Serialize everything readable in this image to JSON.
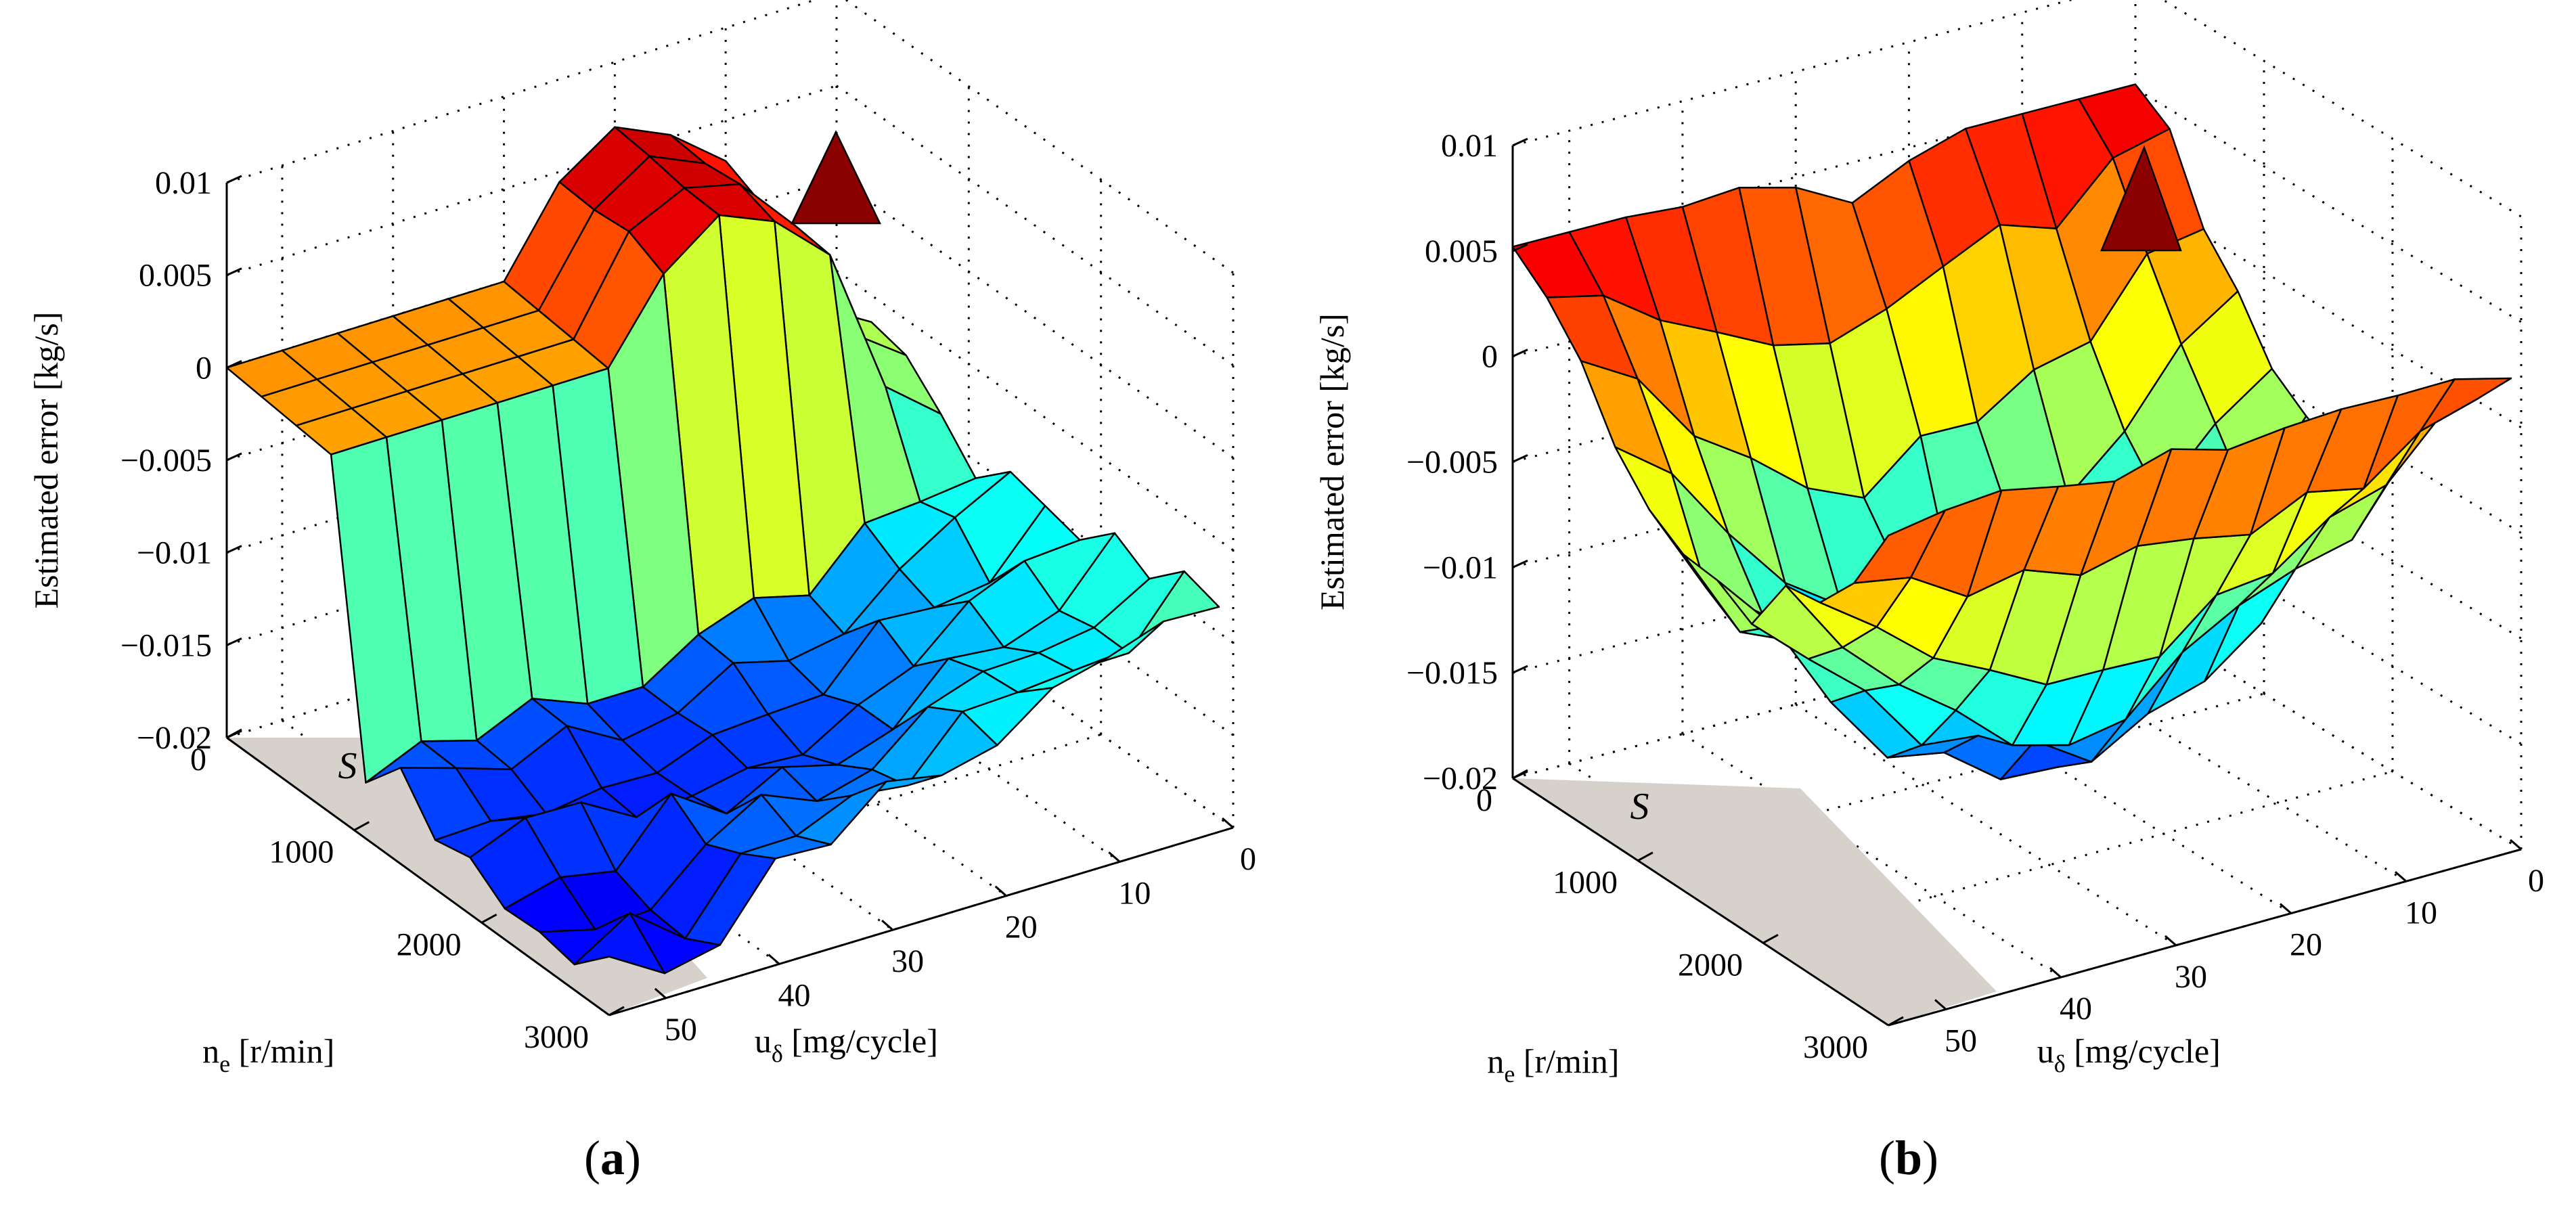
{
  "figure_labels": [
    "a",
    "b"
  ],
  "chart_data": [
    {
      "panel": "a",
      "type": "surface3d",
      "title": "",
      "zlabel": "Estimated error [kg/s]",
      "xlabel_main": "u",
      "xlabel_sub": "δ",
      "xlabel_rest": " [mg/cycle]",
      "ylabel_main": "n",
      "ylabel_sub": "e",
      "ylabel_rest": " [r/min]",
      "region_label": "S",
      "zlim": [
        -0.02,
        0.01
      ],
      "z_ticks": [
        "0.01",
        "0.005",
        "0",
        "−0.005",
        "−0.01",
        "−0.015",
        "−0.02"
      ],
      "z_tick_values": [
        0.01,
        0.005,
        0,
        -0.005,
        -0.01,
        -0.015,
        -0.02
      ],
      "u_ticks": [
        "50",
        "40",
        "30",
        "20",
        "10",
        "0"
      ],
      "u_tick_values": [
        50,
        40,
        30,
        20,
        10,
        0
      ],
      "n_ticks": [
        "0",
        "1000",
        "2000",
        "3000"
      ],
      "n_tick_values": [
        0,
        1000,
        2000,
        3000
      ],
      "u_range": [
        0,
        55
      ],
      "n_range": [
        0,
        3000
      ],
      "grid": true,
      "colormap": "jet"
    },
    {
      "panel": "b",
      "type": "surface3d",
      "title": "",
      "zlabel": "Estimated error [kg/s]",
      "xlabel_main": "u",
      "xlabel_sub": "δ",
      "xlabel_rest": " [mg/cycle]",
      "ylabel_main": "n",
      "ylabel_sub": "e",
      "ylabel_rest": " [r/min]",
      "region_label": "S",
      "zlim": [
        -0.02,
        0.01
      ],
      "z_ticks": [
        "0.01",
        "0.005",
        "0",
        "−0.005",
        "−0.01",
        "−0.015",
        "−0.02"
      ],
      "z_tick_values": [
        0.01,
        0.005,
        0,
        -0.005,
        -0.01,
        -0.015,
        -0.02
      ],
      "u_ticks": [
        "50",
        "40",
        "30",
        "20",
        "10",
        "0"
      ],
      "u_tick_values": [
        50,
        40,
        30,
        20,
        10,
        0
      ],
      "n_ticks": [
        "0",
        "1000",
        "2000",
        "3000"
      ],
      "n_tick_values": [
        0,
        1000,
        2000,
        3000
      ],
      "u_range": [
        0,
        55
      ],
      "n_range": [
        0,
        3000
      ],
      "grid": true,
      "colormap": "jet"
    }
  ]
}
